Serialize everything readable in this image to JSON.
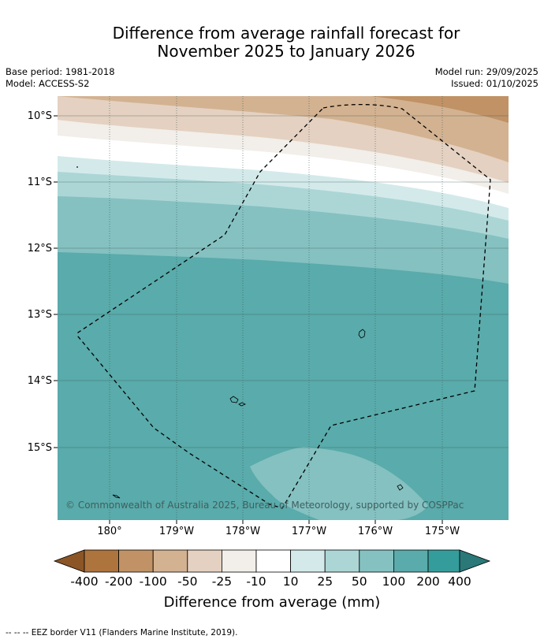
{
  "title": {
    "line1": "Difference from average rainfall forecast for",
    "line2": "November 2025 to January 2026"
  },
  "meta_left": {
    "base_period": "Base period: 1981-2018",
    "model": "Model: ACCESS-S2"
  },
  "meta_right": {
    "model_run": "Model run: 29/09/2025",
    "issued": "Issued: 01/10/2025"
  },
  "map": {
    "lat_ticks": [
      "10°S",
      "11°S",
      "12°S",
      "13°S",
      "14°S",
      "15°S"
    ],
    "lon_ticks": [
      "180°",
      "179°W",
      "178°W",
      "177°W",
      "176°W",
      "175°W"
    ],
    "copyright": "© Commonwealth of Australia 2025, Bureau of Meteorology, supported by COSPPac"
  },
  "colorbar": {
    "labels": [
      "-400",
      "-200",
      "-100",
      "-50",
      "-25",
      "-10",
      "10",
      "25",
      "50",
      "100",
      "200",
      "400"
    ],
    "colors": [
      "#8c5526",
      "#ae743e",
      "#c09265",
      "#d3b291",
      "#e4d1c1",
      "#f2eee9",
      "#ffffff",
      "#d4eaea",
      "#acd6d6",
      "#85c1c1",
      "#5aabab",
      "#359c9c",
      "#2a7878"
    ],
    "title": "Difference from average (mm)"
  },
  "footnote": "--  --  -- EEZ border V11 (Flanders Marine Institute, 2019)."
}
